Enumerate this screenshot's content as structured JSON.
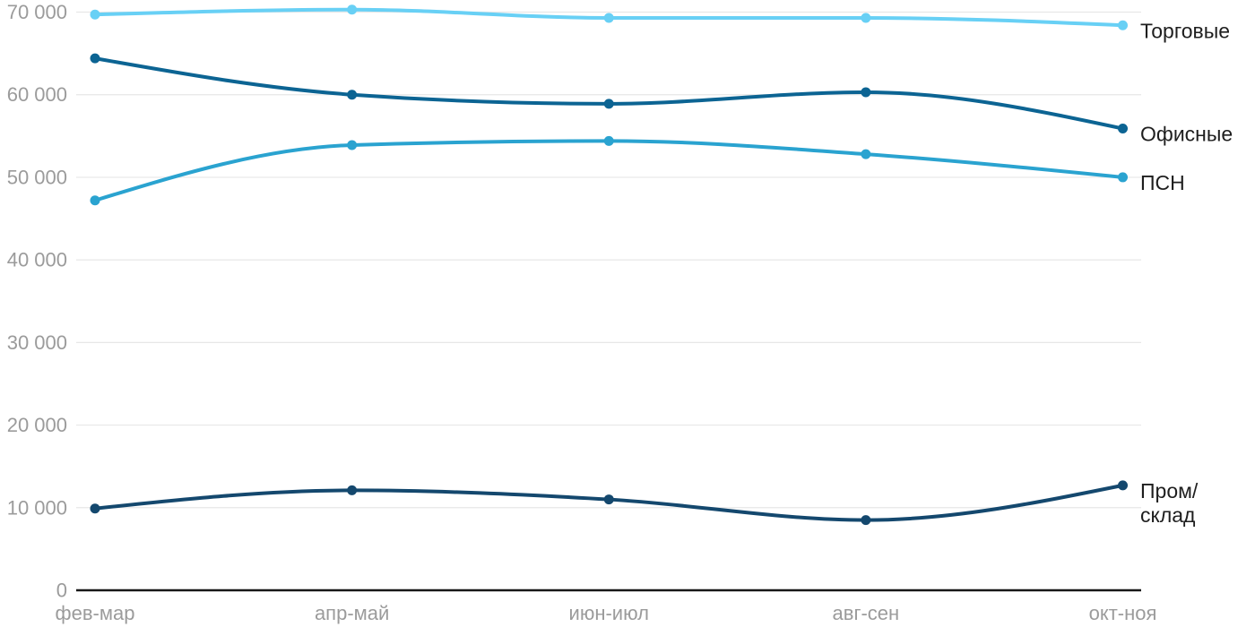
{
  "chart_data": {
    "type": "line",
    "title": "",
    "xlabel": "",
    "ylabel": "",
    "grid": true,
    "legend_position": "end-of-line-labels",
    "categories": [
      "фев-мар",
      "апр-май",
      "июн-июл",
      "авг-сен",
      "окт-ноя"
    ],
    "series": [
      {
        "name": "Торговые",
        "label_lines": [
          "Торговые"
        ],
        "color": "#68d0f5",
        "values": [
          69700,
          70300,
          69300,
          69300,
          68400
        ]
      },
      {
        "name": "Офисные",
        "label_lines": [
          "Офисные"
        ],
        "color": "#0c6493",
        "values": [
          64400,
          60000,
          58900,
          60300,
          55900
        ]
      },
      {
        "name": "ПСН",
        "label_lines": [
          "ПСН"
        ],
        "color": "#2aa3d0",
        "values": [
          47200,
          53900,
          54400,
          52800,
          50000
        ]
      },
      {
        "name": "Пром/склад",
        "label_lines": [
          "Пром/",
          "склад"
        ],
        "color": "#14486e",
        "values": [
          9900,
          12100,
          11000,
          8500,
          12700
        ]
      }
    ],
    "y_axis": {
      "min": 0,
      "max": 70000,
      "step": 10000,
      "ticks": [
        {
          "value": 0,
          "label": "0"
        },
        {
          "value": 10000,
          "label": "10 000"
        },
        {
          "value": 20000,
          "label": "20 000"
        },
        {
          "value": 30000,
          "label": "30 000"
        },
        {
          "value": 40000,
          "label": "40 000"
        },
        {
          "value": 50000,
          "label": "50 000"
        },
        {
          "value": 60000,
          "label": "60 000"
        },
        {
          "value": 70000,
          "label": "70 000"
        }
      ]
    }
  },
  "colors": {
    "background": "#ffffff",
    "grid": "#e7e7e7",
    "axis": "#171717",
    "tick_label": "#9b9b9b",
    "series_label": "#1e1e1e"
  }
}
